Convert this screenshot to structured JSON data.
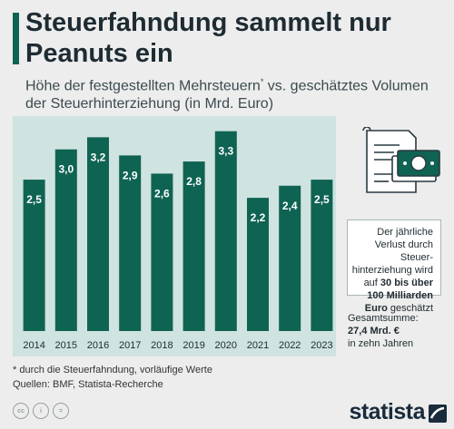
{
  "title": "Steuerfahndung sammelt nur Peanuts ein",
  "subtitle_main": "Höhe der festgestellten Mehrsteuern",
  "subtitle_sup": "*",
  "subtitle_rest": " vs. geschätztes Volumen der Steuerhinterziehung (in Mrd. Euro)",
  "callout": {
    "line1": "Der jährliche Verlust durch Steuer-hinterziehung wird auf ",
    "bold": "30 bis über 100 Milliarden Euro",
    "line2": " geschätzt"
  },
  "total": {
    "label": "Gesamtsumme:",
    "amount": "27,4 Mrd. €",
    "note": "in zehn Jahren"
  },
  "footnote": "* durch die Steuerfahndung, vorläufige Werte",
  "sources": "Quellen: BMF, Statista-Recherche",
  "brand": "statista",
  "colors": {
    "bar": "#0f6352",
    "plot_bg": "#cfe3e0",
    "accent": "#0f6352",
    "background": "#ecedec"
  },
  "icons": [
    "document-money-icon",
    "cc-icon",
    "by-icon",
    "nd-icon",
    "statista-logo-icon"
  ],
  "chart_data": {
    "type": "bar",
    "categories": [
      "2014",
      "2015",
      "2016",
      "2017",
      "2018",
      "2019",
      "2020",
      "2021",
      "2022",
      "2023"
    ],
    "values": [
      2.5,
      3.0,
      3.2,
      2.9,
      2.6,
      2.8,
      3.3,
      2.2,
      2.4,
      2.5
    ],
    "value_labels": [
      "2,5",
      "3,0",
      "3,2",
      "2,9",
      "2,6",
      "2,8",
      "3,3",
      "2,2",
      "2,4",
      "2,5"
    ],
    "ylim": [
      0,
      3.4
    ],
    "grid": false,
    "legend": "none"
  }
}
